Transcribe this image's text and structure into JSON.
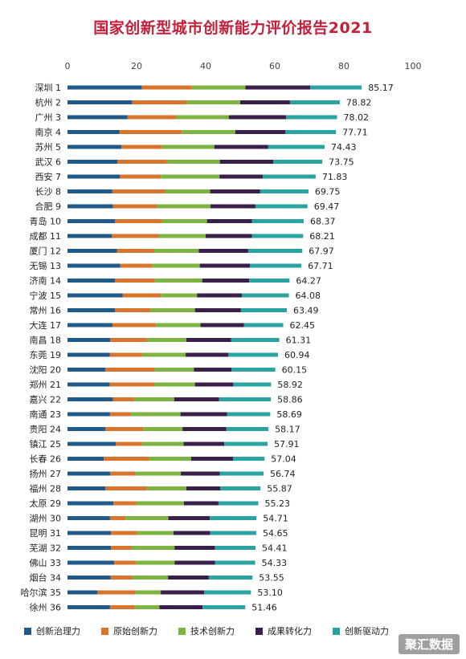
{
  "title": "国家创新型城市创新能力评价报告2021",
  "watermark": "聚汇数据",
  "chart_data": {
    "type": "bar",
    "orientation": "horizontal",
    "stacked": true,
    "xlim": [
      0,
      100
    ],
    "xticks": [
      "0",
      "20",
      "40",
      "60",
      "80",
      "100"
    ],
    "legend_position": "bottom",
    "categories": [
      "深圳 1",
      "杭州 2",
      "广州 3",
      "南京 4",
      "苏州 5",
      "武汉 6",
      "西安 7",
      "长沙 8",
      "合肥 9",
      "青岛 10",
      "成都 11",
      "厦门 12",
      "无锡 13",
      "济南 14",
      "宁波 15",
      "常州 16",
      "大连 17",
      "南昌 18",
      "东莞 19",
      "沈阳 20",
      "郑州 21",
      "嘉兴 22",
      "南通 23",
      "贵阳 24",
      "镇江 25",
      "长春 26",
      "扬州 27",
      "福州 28",
      "太原 29",
      "湖州 30",
      "昆明 31",
      "芜湖 32",
      "佛山 33",
      "烟台 34",
      "哈尔滨 35",
      "徐州 36"
    ],
    "totals": [
      85.17,
      78.82,
      78.02,
      77.71,
      74.43,
      73.75,
      71.83,
      69.75,
      69.47,
      68.37,
      68.21,
      67.97,
      67.71,
      64.27,
      64.08,
      63.49,
      62.45,
      61.31,
      60.94,
      60.15,
      58.92,
      58.86,
      58.69,
      58.17,
      57.91,
      57.04,
      56.74,
      55.87,
      55.23,
      54.71,
      54.65,
      54.41,
      54.33,
      53.55,
      53.1,
      51.46
    ],
    "total_labels": [
      "85.17",
      "78.82",
      "78.02",
      "77.71",
      "74.43",
      "73.75",
      "71.83",
      "69.75",
      "69.47",
      "68.37",
      "68.21",
      "67.97",
      "67.71",
      "64.27",
      "64.08",
      "63.49",
      "62.45",
      "61.31",
      "60.94",
      "60.15",
      "58.92",
      "58.86",
      "58.69",
      "58.17",
      "57.91",
      "57.04",
      "56.74",
      "55.87",
      "55.23",
      "54.71",
      "54.65",
      "54.41",
      "54.33",
      "53.55",
      "53.10",
      "51.46"
    ],
    "series": [
      {
        "name": "创新治理力",
        "color": "#1f5a8a",
        "values": [
          21.5,
          18.7,
          17.4,
          15.0,
          15.6,
          14.5,
          15.2,
          13.0,
          13.2,
          13.8,
          12.8,
          14.3,
          15.3,
          13.8,
          16.0,
          13.8,
          13.0,
          12.4,
          12.3,
          11.0,
          12.2,
          13.2,
          12.3,
          11.0,
          14.0,
          10.5,
          12.4,
          11.0,
          13.3,
          12.3,
          12.6,
          12.6,
          13.5,
          12.5,
          8.7,
          12.3
        ]
      },
      {
        "name": "原始创新力",
        "color": "#d9742c",
        "values": [
          14.5,
          15.9,
          14.0,
          18.1,
          11.7,
          14.3,
          11.8,
          15.3,
          12.6,
          13.6,
          13.6,
          10.7,
          9.3,
          11.4,
          11.0,
          10.2,
          12.6,
          10.6,
          9.4,
          14.2,
          12.9,
          6.2,
          6.1,
          10.9,
          7.5,
          13.0,
          7.3,
          12.1,
          6.6,
          4.5,
          7.6,
          5.9,
          6.3,
          6.3,
          11.0,
          7.1
        ]
      },
      {
        "name": "技术创新力",
        "color": "#7cb341",
        "values": [
          15.5,
          15.4,
          15.3,
          15.5,
          15.2,
          15.3,
          17.0,
          13.0,
          15.6,
          13.0,
          13.6,
          13.0,
          13.7,
          13.8,
          10.5,
          12.9,
          12.9,
          11.4,
          12.5,
          11.4,
          11.8,
          11.5,
          14.3,
          11.4,
          12.1,
          12.3,
          13.1,
          11.3,
          13.8,
          12.4,
          10.5,
          12.5,
          11.2,
          10.3,
          7.3,
          7.2
        ]
      },
      {
        "name": "成果转化力",
        "color": "#3a1f4a",
        "values": [
          18.8,
          14.4,
          16.6,
          14.5,
          15.6,
          15.5,
          12.5,
          14.4,
          13.0,
          13.0,
          13.4,
          14.3,
          14.5,
          13.6,
          13.0,
          13.3,
          12.6,
          13.0,
          12.4,
          10.9,
          11.1,
          13.0,
          13.5,
          12.7,
          11.8,
          12.1,
          11.3,
          9.8,
          10.0,
          12.0,
          10.6,
          11.7,
          11.7,
          11.8,
          12.6,
          12.5
        ]
      },
      {
        "name": "创新驱动力",
        "color": "#2ba3a3",
        "values": [
          14.87,
          14.42,
          14.72,
          14.61,
          16.33,
          14.15,
          15.33,
          14.05,
          15.07,
          14.97,
          14.81,
          15.67,
          14.91,
          11.67,
          13.58,
          13.29,
          11.35,
          13.91,
          14.34,
          12.65,
          10.92,
          14.96,
          12.49,
          12.17,
          12.51,
          9.14,
          12.64,
          11.67,
          11.53,
          13.51,
          13.35,
          11.71,
          11.63,
          12.65,
          13.5,
          12.36
        ]
      }
    ]
  }
}
